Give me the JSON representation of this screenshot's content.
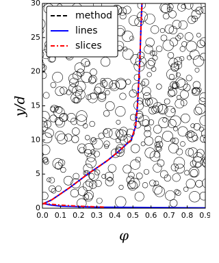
{
  "chart_data": {
    "type": "line",
    "xlabel": "φ",
    "ylabel": "y/d",
    "xlim": [
      0,
      0.9
    ],
    "ylim": [
      0,
      30
    ],
    "xticks": [
      {
        "value": 0,
        "label": "0.0"
      },
      0.1,
      0.2,
      0.3,
      0.4,
      0.5,
      0.6,
      0.7,
      0.8,
      0.9
    ],
    "yticks": [
      0,
      5,
      10,
      15,
      20,
      25,
      30
    ],
    "legend": "upper left",
    "series": [
      {
        "name": "method",
        "color": "#000000",
        "style": "dashed",
        "x": [
          0.0,
          0.05,
          0.1,
          0.15,
          0.2,
          0.25,
          0.3,
          0.36,
          0.42,
          0.49,
          0.515,
          0.525,
          0.535,
          0.54,
          0.545,
          0.55
        ],
        "values": [
          0.6,
          1.2,
          2.1,
          3.0,
          4.0,
          5.0,
          5.9,
          7.0,
          8.3,
          10.0,
          12.0,
          15.0,
          20.0,
          23.0,
          27.0,
          30.0
        ]
      },
      {
        "name": "lines",
        "color": "#0000ff",
        "style": "solid",
        "x": [
          0.0,
          0.05,
          0.1,
          0.15,
          0.2,
          0.25,
          0.3,
          0.36,
          0.42,
          0.49,
          0.515,
          0.525,
          0.535,
          0.54,
          0.545,
          0.55,
          null,
          0.0,
          0.05,
          0.1,
          0.3,
          0.6,
          0.9
        ],
        "values": [
          0.6,
          1.2,
          2.1,
          3.0,
          4.0,
          5.0,
          5.9,
          7.0,
          8.3,
          10.0,
          12.0,
          15.0,
          20.0,
          23.0,
          27.0,
          30.0,
          null,
          0.7,
          0.45,
          0.3,
          0.15,
          0.1,
          0.05
        ]
      },
      {
        "name": "slices",
        "color": "#ff0000",
        "style": "dashdot",
        "x": [
          0.0,
          0.05,
          0.1,
          0.15,
          0.2,
          0.25,
          0.3,
          0.36,
          0.42,
          0.49,
          0.515,
          0.525,
          0.535,
          0.54,
          0.545,
          0.55,
          null,
          0.0,
          0.1,
          0.2,
          0.3,
          0.35
        ],
        "values": [
          0.6,
          1.2,
          2.1,
          3.0,
          4.0,
          5.0,
          5.9,
          7.0,
          8.3,
          10.0,
          12.0,
          15.0,
          20.0,
          23.0,
          27.0,
          30.0,
          null,
          0.7,
          0.45,
          0.3,
          0.2,
          0.15
        ]
      }
    ]
  }
}
